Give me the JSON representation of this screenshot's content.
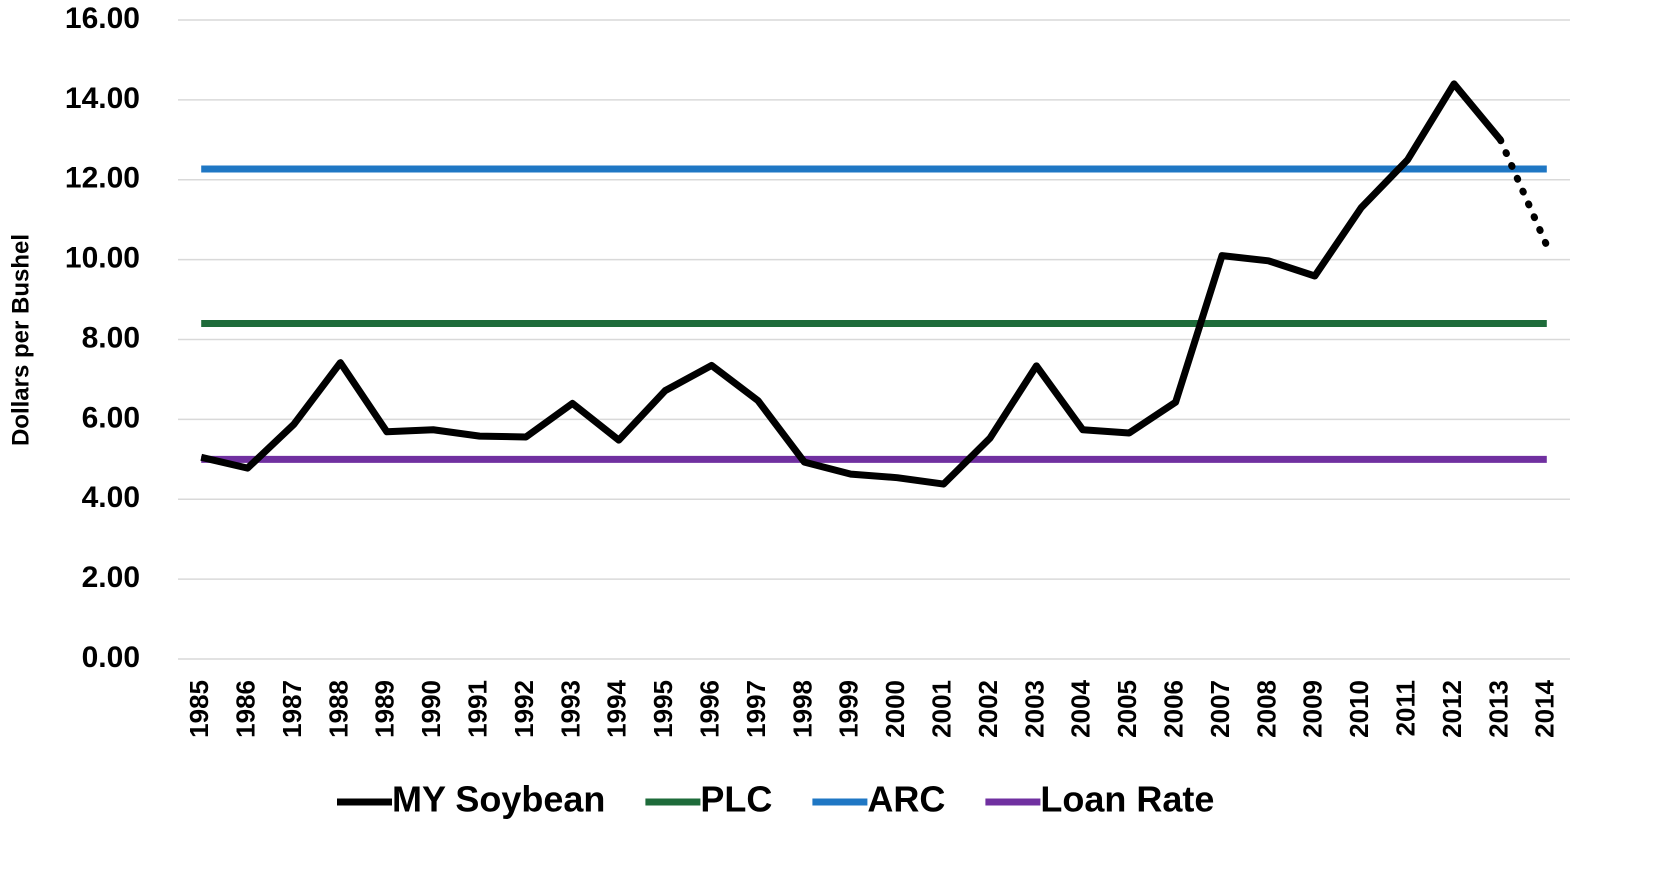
{
  "chart_data": {
    "type": "line",
    "y_label": "Dollars per Bushel",
    "categories": [
      "1985",
      "1986",
      "1987",
      "1988",
      "1989",
      "1990",
      "1991",
      "1992",
      "1993",
      "1994",
      "1995",
      "1996",
      "1997",
      "1998",
      "1999",
      "2000",
      "2001",
      "2002",
      "2003",
      "2004",
      "2005",
      "2006",
      "2007",
      "2008",
      "2009",
      "2010",
      "2011",
      "2012",
      "2013",
      "2014"
    ],
    "series": [
      {
        "name": "MY Soybean",
        "color": "#000000",
        "values": [
          5.05,
          4.78,
          5.88,
          7.42,
          5.69,
          5.74,
          5.58,
          5.56,
          6.4,
          5.48,
          6.72,
          7.35,
          6.47,
          4.93,
          4.63,
          4.54,
          4.38,
          5.53,
          7.34,
          5.74,
          5.66,
          6.43,
          10.1,
          9.97,
          9.59,
          11.3,
          12.5,
          14.4,
          13.0,
          10.35
        ],
        "dotted_from": "2013"
      },
      {
        "name": "PLC",
        "color": "#1e6b3a",
        "values": [
          8.4,
          8.4,
          8.4,
          8.4,
          8.4,
          8.4,
          8.4,
          8.4,
          8.4,
          8.4,
          8.4,
          8.4,
          8.4,
          8.4,
          8.4,
          8.4,
          8.4,
          8.4,
          8.4,
          8.4,
          8.4,
          8.4,
          8.4,
          8.4,
          8.4,
          8.4,
          8.4,
          8.4,
          8.4,
          8.4
        ]
      },
      {
        "name": "ARC",
        "color": "#1f77c4",
        "values": [
          12.27,
          12.27,
          12.27,
          12.27,
          12.27,
          12.27,
          12.27,
          12.27,
          12.27,
          12.27,
          12.27,
          12.27,
          12.27,
          12.27,
          12.27,
          12.27,
          12.27,
          12.27,
          12.27,
          12.27,
          12.27,
          12.27,
          12.27,
          12.27,
          12.27,
          12.27,
          12.27,
          12.27,
          12.27,
          12.27
        ]
      },
      {
        "name": "Loan Rate",
        "color": "#7030a0",
        "values": [
          5.0,
          5.0,
          5.0,
          5.0,
          5.0,
          5.0,
          5.0,
          5.0,
          5.0,
          5.0,
          5.0,
          5.0,
          5.0,
          5.0,
          5.0,
          5.0,
          5.0,
          5.0,
          5.0,
          5.0,
          5.0,
          5.0,
          5.0,
          5.0,
          5.0,
          5.0,
          5.0,
          5.0,
          5.0,
          5.0
        ]
      }
    ],
    "ylim": [
      0,
      16
    ],
    "yticks": [
      {
        "value": 0,
        "label": "0.00"
      },
      {
        "value": 2,
        "label": "2.00"
      },
      {
        "value": 4,
        "label": "4.00"
      },
      {
        "value": 6,
        "label": "6.00"
      },
      {
        "value": 8,
        "label": "8.00"
      },
      {
        "value": 10,
        "label": "10.00"
      },
      {
        "value": 12,
        "label": "12.00"
      },
      {
        "value": 14,
        "label": "14.00"
      },
      {
        "value": 16,
        "label": "16.00"
      }
    ],
    "grid": true,
    "legend": "bottom"
  }
}
